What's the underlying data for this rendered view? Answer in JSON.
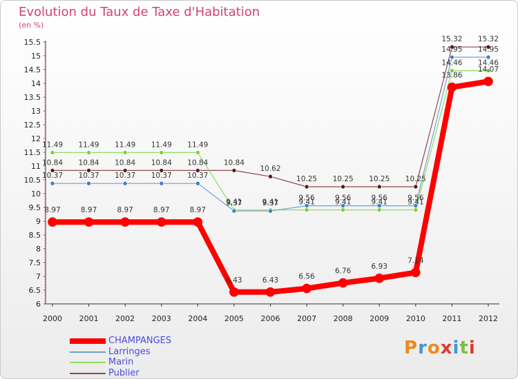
{
  "header": {
    "title": "Evolution du Taux de Taxe d'Habitation",
    "subtitle": "(en %)"
  },
  "logo": {
    "text": "Proxiti",
    "colors": [
      "#f08a1c",
      "#3e9ad6",
      "#f08a1c",
      "#e23a2b",
      "#3e9ad6",
      "#7cbf3a",
      "#e23a2b"
    ]
  },
  "chart_data": {
    "type": "line",
    "title": "Evolution du Taux de Taxe d'Habitation",
    "ylabel": "(en %)",
    "xlabel": "",
    "categories": [
      "2000",
      "2001",
      "2002",
      "2003",
      "2004",
      "2005",
      "2006",
      "2007",
      "2008",
      "2009",
      "2010",
      "2011",
      "2012"
    ],
    "ylim": [
      6,
      15.5
    ],
    "ytick_step": 0.5,
    "grid": false,
    "legend_position": "bottom-left",
    "series": [
      {
        "name": "CHAMPANGES",
        "color": "#ff0000",
        "width": 8,
        "marker": "#ff0000",
        "values": [
          8.97,
          8.97,
          8.97,
          8.97,
          8.97,
          6.43,
          6.43,
          6.56,
          6.76,
          6.93,
          7.14,
          13.86,
          14.07
        ],
        "labels": [
          "8.97",
          "8.97",
          "8.97",
          "8.97",
          "8.97",
          "6.43",
          "6.43",
          "6.56",
          "6.76",
          "6.93",
          "7.14",
          "13.86",
          "14.07"
        ]
      },
      {
        "name": "Larringes",
        "color": "#6f9ecf",
        "width": 1.2,
        "marker": "#3f7fc7",
        "values": [
          10.37,
          10.37,
          10.37,
          10.37,
          10.37,
          9.37,
          9.37,
          9.56,
          9.56,
          9.56,
          9.56,
          14.95,
          14.95
        ],
        "labels": [
          "10.37",
          "10.37",
          "10.37",
          "10.37",
          "10.37",
          "9.37",
          "9.37",
          "9.56",
          "9.56",
          "9.56",
          "9.56",
          "14.95",
          "14.95"
        ]
      },
      {
        "name": "Marin",
        "color": "#8fdc62",
        "width": 1.2,
        "marker": "#7bd03c",
        "values": [
          11.49,
          11.49,
          11.49,
          11.49,
          11.49,
          9.41,
          9.41,
          9.41,
          9.41,
          9.41,
          9.41,
          14.46,
          14.46
        ],
        "labels": [
          "11.49",
          "11.49",
          "11.49",
          "11.49",
          "11.49",
          "9.41",
          "9.41",
          "9.41",
          "9.41",
          "9.41",
          "9.41",
          "14.46",
          "14.46"
        ]
      },
      {
        "name": "Publier",
        "color": "#8c4848",
        "width": 1.2,
        "marker": "#5a1a1a",
        "values": [
          10.84,
          10.84,
          10.84,
          10.84,
          10.84,
          10.84,
          10.62,
          10.25,
          10.25,
          10.25,
          10.25,
          15.32,
          15.32
        ],
        "labels": [
          "10.84",
          "10.84",
          "10.84",
          "10.84",
          "10.84",
          "10.84",
          "10.62",
          "10.25",
          "10.25",
          "10.25",
          "10.25",
          "15.32",
          "15.32"
        ]
      }
    ]
  }
}
